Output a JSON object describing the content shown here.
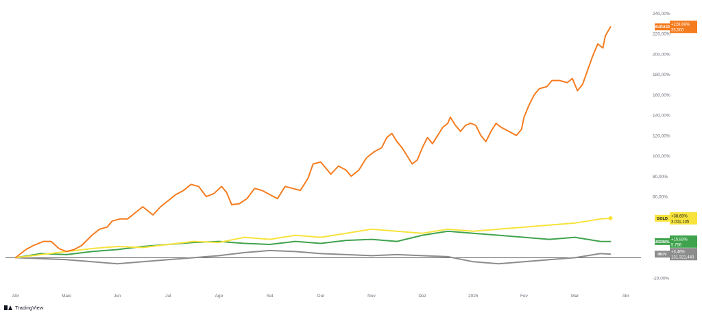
{
  "brand": {
    "name": "TradingView",
    "icon": "tradingview-logo-icon"
  },
  "colors": {
    "background": "#ffffff",
    "axis_text": "#6a6d78",
    "zero_line": "#3b3b3b",
    "grid": "#f0f0f0"
  },
  "chart_data": {
    "type": "line",
    "title": "",
    "xlabel": "",
    "ylabel": "",
    "ylim": [
      -28,
      245
    ],
    "y_ticks": [
      -20,
      0,
      20,
      40,
      60,
      80,
      100,
      120,
      140,
      160,
      180,
      200,
      220,
      240
    ],
    "y_tick_labels": [
      "-20,00%",
      "",
      "",
      "",
      "60,00%",
      "80,00%",
      "100,00%",
      "120,00%",
      "140,00%",
      "160,00%",
      "180,00%",
      "200,00%",
      "220,00%",
      "240,00%"
    ],
    "x_ticks": [
      {
        "label": "Abr",
        "pos": 0.0
      },
      {
        "label": "Maio",
        "pos": 1.0
      },
      {
        "label": "Jun",
        "pos": 2.0
      },
      {
        "label": "Jul",
        "pos": 3.0
      },
      {
        "label": "Ago",
        "pos": 4.0
      },
      {
        "label": "Set",
        "pos": 5.0
      },
      {
        "label": "Out",
        "pos": 6.0
      },
      {
        "label": "Nov",
        "pos": 7.0
      },
      {
        "label": "Dez",
        "pos": 8.0
      },
      {
        "label": "2025",
        "pos": 9.0
      },
      {
        "label": "Fev",
        "pos": 10.0
      },
      {
        "label": "Mar",
        "pos": 11.0
      },
      {
        "label": "Abr",
        "pos": 12.0
      }
    ],
    "x_range": [
      -0.2,
      12.3
    ],
    "grid": false,
    "series": [
      {
        "name": "AURA33",
        "color": "#f57c1f",
        "last_change": "+226,69%",
        "last_price": "35,500",
        "points": [
          [
            0,
            0
          ],
          [
            0.2,
            8
          ],
          [
            0.35,
            12
          ],
          [
            0.55,
            16
          ],
          [
            0.7,
            16
          ],
          [
            0.85,
            9
          ],
          [
            1.0,
            6
          ],
          [
            1.15,
            8
          ],
          [
            1.3,
            12
          ],
          [
            1.5,
            22
          ],
          [
            1.65,
            28
          ],
          [
            1.8,
            30
          ],
          [
            1.9,
            36
          ],
          [
            2.05,
            38
          ],
          [
            2.2,
            38
          ],
          [
            2.35,
            44
          ],
          [
            2.5,
            50
          ],
          [
            2.7,
            42
          ],
          [
            2.85,
            50
          ],
          [
            3.0,
            56
          ],
          [
            3.15,
            62
          ],
          [
            3.3,
            66
          ],
          [
            3.45,
            72
          ],
          [
            3.6,
            70
          ],
          [
            3.75,
            60
          ],
          [
            3.9,
            63
          ],
          [
            4.05,
            70
          ],
          [
            4.15,
            64
          ],
          [
            4.25,
            52
          ],
          [
            4.4,
            53
          ],
          [
            4.55,
            58
          ],
          [
            4.7,
            68
          ],
          [
            4.85,
            66
          ],
          [
            5.0,
            62
          ],
          [
            5.15,
            58
          ],
          [
            5.3,
            70
          ],
          [
            5.45,
            68
          ],
          [
            5.6,
            66
          ],
          [
            5.75,
            78
          ],
          [
            5.85,
            92
          ],
          [
            6.0,
            94
          ],
          [
            6.1,
            88
          ],
          [
            6.2,
            82
          ],
          [
            6.35,
            90
          ],
          [
            6.5,
            86
          ],
          [
            6.6,
            80
          ],
          [
            6.75,
            86
          ],
          [
            6.9,
            98
          ],
          [
            7.05,
            104
          ],
          [
            7.2,
            108
          ],
          [
            7.3,
            118
          ],
          [
            7.4,
            122
          ],
          [
            7.5,
            114
          ],
          [
            7.6,
            108
          ],
          [
            7.7,
            100
          ],
          [
            7.8,
            92
          ],
          [
            7.9,
            96
          ],
          [
            8.0,
            108
          ],
          [
            8.1,
            118
          ],
          [
            8.2,
            112
          ],
          [
            8.3,
            120
          ],
          [
            8.4,
            128
          ],
          [
            8.5,
            132
          ],
          [
            8.55,
            138
          ],
          [
            8.65,
            130
          ],
          [
            8.75,
            124
          ],
          [
            8.85,
            130
          ],
          [
            8.95,
            132
          ],
          [
            9.05,
            130
          ],
          [
            9.15,
            120
          ],
          [
            9.25,
            114
          ],
          [
            9.35,
            124
          ],
          [
            9.45,
            132
          ],
          [
            9.55,
            128
          ],
          [
            9.7,
            124
          ],
          [
            9.85,
            120
          ],
          [
            9.95,
            126
          ],
          [
            10.0,
            138
          ],
          [
            10.1,
            150
          ],
          [
            10.2,
            160
          ],
          [
            10.3,
            166
          ],
          [
            10.45,
            168
          ],
          [
            10.55,
            174
          ],
          [
            10.7,
            174
          ],
          [
            10.85,
            172
          ],
          [
            10.95,
            176
          ],
          [
            11.05,
            164
          ],
          [
            11.15,
            170
          ],
          [
            11.25,
            184
          ],
          [
            11.35,
            198
          ],
          [
            11.45,
            210
          ],
          [
            11.55,
            206
          ],
          [
            11.6,
            218
          ],
          [
            11.7,
            226.69
          ]
        ]
      },
      {
        "name": "GOLD",
        "color": "#f7e33b",
        "last_change": "+38,69%",
        "last_price": "3.011,135",
        "points": [
          [
            0,
            0
          ],
          [
            0.5,
            3
          ],
          [
            1.0,
            6
          ],
          [
            1.5,
            9
          ],
          [
            2.0,
            11
          ],
          [
            2.5,
            10
          ],
          [
            3.0,
            13
          ],
          [
            3.5,
            16
          ],
          [
            4.0,
            15
          ],
          [
            4.5,
            20
          ],
          [
            5.0,
            18
          ],
          [
            5.5,
            22
          ],
          [
            6.0,
            20
          ],
          [
            6.5,
            24
          ],
          [
            7.0,
            28
          ],
          [
            7.5,
            26
          ],
          [
            8.0,
            24
          ],
          [
            8.5,
            28
          ],
          [
            9.0,
            26
          ],
          [
            9.5,
            28
          ],
          [
            10.0,
            30
          ],
          [
            10.5,
            32
          ],
          [
            11.0,
            34
          ],
          [
            11.5,
            38
          ],
          [
            11.7,
            38.69
          ]
        ]
      },
      {
        "name": "USDBRL",
        "color": "#3fa34d",
        "last_change": "+15,83%",
        "last_price": "5,756",
        "points": [
          [
            0,
            0
          ],
          [
            0.5,
            4
          ],
          [
            1.0,
            3
          ],
          [
            1.5,
            6
          ],
          [
            2.0,
            8
          ],
          [
            2.5,
            11
          ],
          [
            3.0,
            13
          ],
          [
            3.5,
            15
          ],
          [
            4.0,
            16
          ],
          [
            4.5,
            14
          ],
          [
            5.0,
            13
          ],
          [
            5.5,
            16
          ],
          [
            6.0,
            14
          ],
          [
            6.5,
            17
          ],
          [
            7.0,
            18
          ],
          [
            7.5,
            16
          ],
          [
            8.0,
            22
          ],
          [
            8.5,
            26
          ],
          [
            9.0,
            24
          ],
          [
            9.5,
            22
          ],
          [
            10.0,
            20
          ],
          [
            10.5,
            18
          ],
          [
            11.0,
            20
          ],
          [
            11.5,
            16
          ],
          [
            11.7,
            15.83
          ]
        ]
      },
      {
        "name": "IBOV",
        "color": "#8c8c8c",
        "last_change": "+3,46%",
        "last_price": "131.321,440",
        "points": [
          [
            0,
            0
          ],
          [
            0.5,
            -1
          ],
          [
            1.0,
            -2
          ],
          [
            1.5,
            -4
          ],
          [
            2.0,
            -6
          ],
          [
            2.5,
            -4
          ],
          [
            3.0,
            -2
          ],
          [
            3.5,
            0
          ],
          [
            4.0,
            2
          ],
          [
            4.5,
            5
          ],
          [
            5.0,
            7
          ],
          [
            5.5,
            6
          ],
          [
            6.0,
            4
          ],
          [
            6.5,
            3
          ],
          [
            7.0,
            2
          ],
          [
            7.5,
            3
          ],
          [
            8.0,
            2
          ],
          [
            8.5,
            1
          ],
          [
            9.0,
            -4
          ],
          [
            9.5,
            -6
          ],
          [
            10.0,
            -4
          ],
          [
            10.5,
            -2
          ],
          [
            11.0,
            0
          ],
          [
            11.5,
            4
          ],
          [
            11.7,
            3.46
          ]
        ]
      }
    ]
  }
}
